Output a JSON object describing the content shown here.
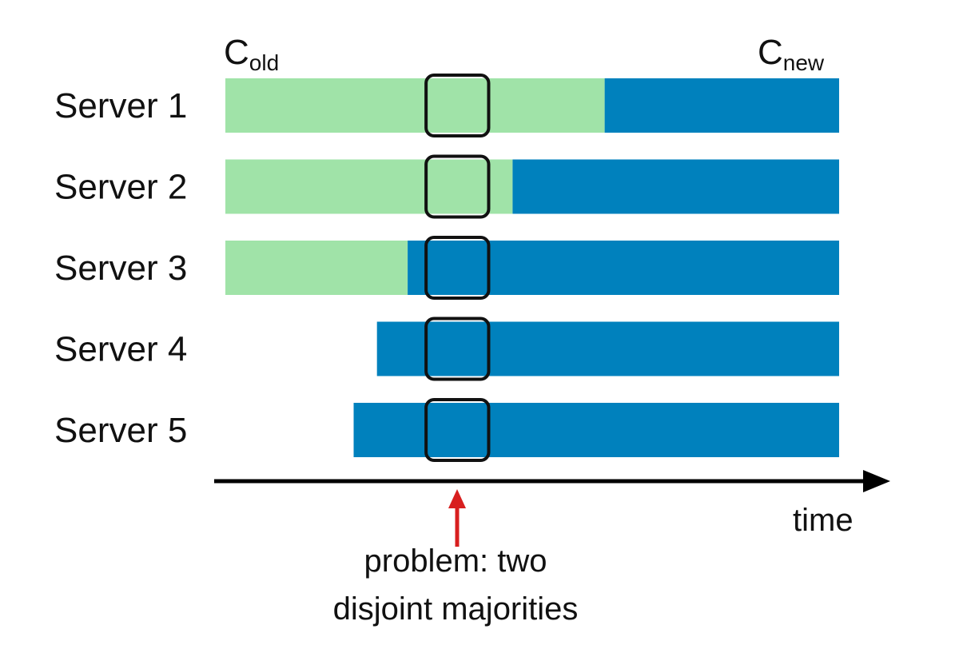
{
  "legend": {
    "old_config": {
      "base": "C",
      "subscript": "old"
    },
    "new_config": {
      "base": "C",
      "subscript": "new"
    }
  },
  "colors": {
    "old": "#a0e3a8",
    "new": "#0081bd",
    "window_stroke": "#111111",
    "axis": "#000000",
    "problem_arrow": "#d81f1f"
  },
  "servers": [
    {
      "label": "Server 1",
      "old_start": 0,
      "switch_at": 0.618,
      "end": 1.0
    },
    {
      "label": "Server 2",
      "old_start": 0,
      "switch_at": 0.468,
      "end": 1.0
    },
    {
      "label": "Server 3",
      "old_start": 0,
      "switch_at": 0.297,
      "end": 1.0
    },
    {
      "label": "Server 4",
      "old_start": null,
      "switch_at": 0.247,
      "end": 1.0
    },
    {
      "label": "Server 5",
      "old_start": null,
      "switch_at": 0.209,
      "end": 1.0
    }
  ],
  "problem_window": {
    "start": 0.327,
    "end": 0.429
  },
  "axis": {
    "label": "time"
  },
  "annotation": {
    "line1": "problem: two",
    "line2": "disjoint majorities"
  }
}
